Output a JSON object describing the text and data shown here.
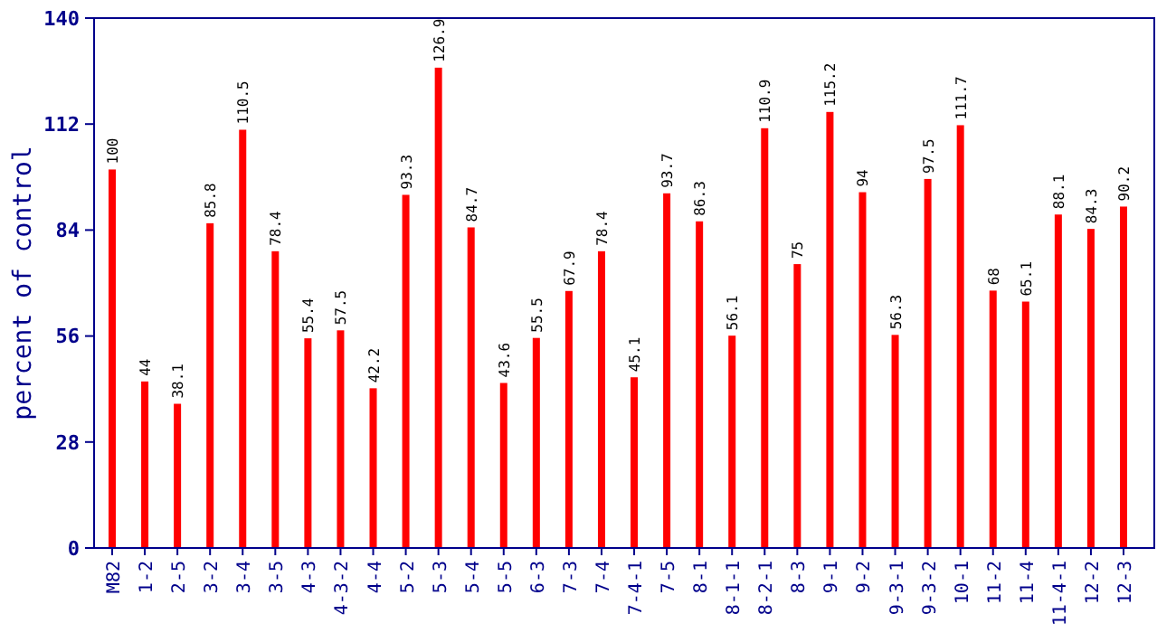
{
  "chart_data": {
    "type": "bar",
    "ylabel": "percent of control",
    "categories": [
      "M82",
      "1-2",
      "2-5",
      "3-2",
      "3-4",
      "3-5",
      "4-3",
      "4-3-2",
      "4-4",
      "5-2",
      "5-3",
      "5-4",
      "5-5",
      "6-3",
      "7-3",
      "7-4",
      "7-4-1",
      "7-5",
      "8-1",
      "8-1-1",
      "8-2-1",
      "8-3",
      "9-1",
      "9-2",
      "9-3-1",
      "9-3-2",
      "10-1",
      "11-2",
      "11-4",
      "11-4-1",
      "12-2",
      "12-3"
    ],
    "values": [
      100,
      44,
      38.1,
      85.8,
      110.5,
      78.4,
      55.4,
      57.5,
      42.2,
      93.3,
      126.9,
      84.7,
      43.6,
      55.5,
      67.9,
      78.4,
      45.1,
      93.7,
      86.3,
      56.1,
      110.9,
      75,
      115.2,
      94,
      56.3,
      97.5,
      111.7,
      68,
      65.1,
      88.1,
      84.3,
      90.2
    ],
    "color": "#ff0000",
    "ylim": [
      0,
      140
    ],
    "yticks": [
      0,
      28,
      56,
      84,
      112,
      140
    ],
    "data_labels": true,
    "grid": false
  }
}
